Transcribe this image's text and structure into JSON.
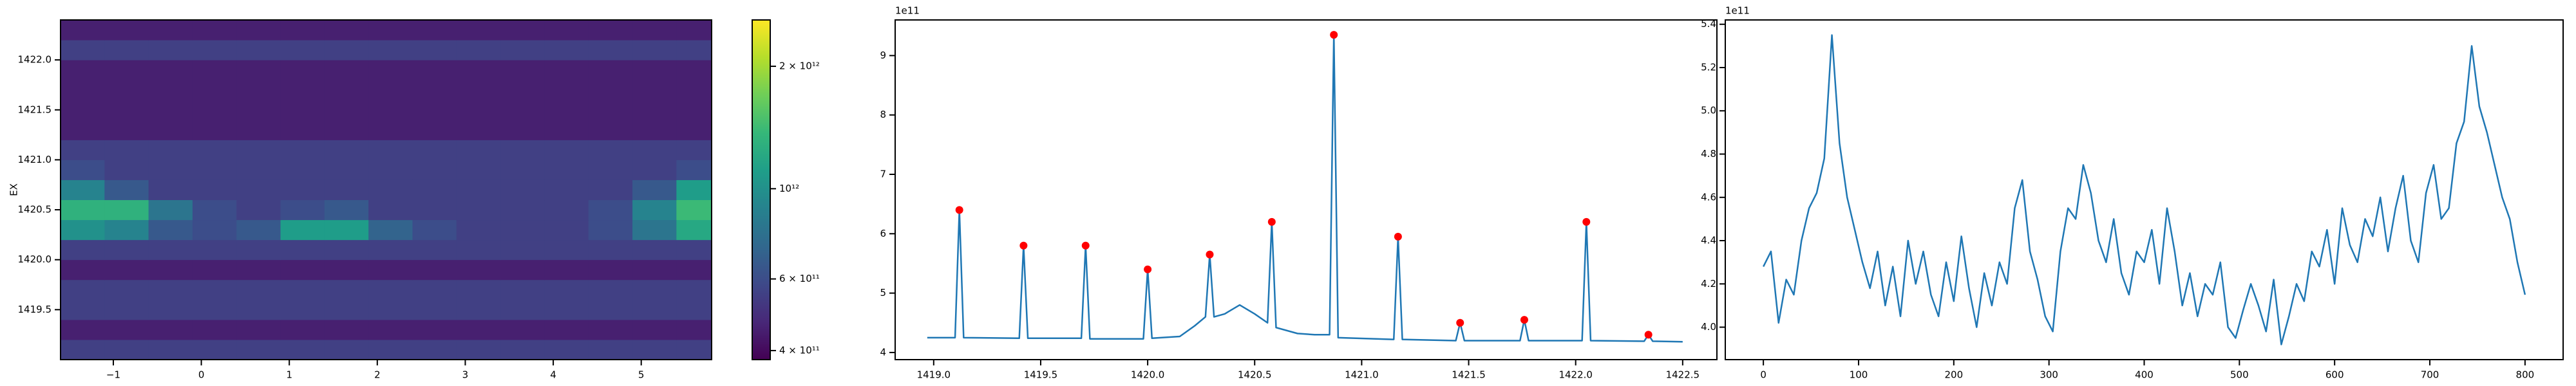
{
  "chart_data": [
    {
      "type": "heatmap",
      "ylabel": "EX",
      "x_edges": [
        -1.6,
        -1.1,
        -0.6,
        -0.1,
        0.4,
        0.9,
        1.4,
        1.9,
        2.4,
        2.9,
        3.4,
        3.9,
        4.4,
        4.9,
        5.4,
        5.8
      ],
      "y_edges": [
        1419.0,
        1419.2,
        1419.4,
        1419.6,
        1419.8,
        1420.0,
        1420.2,
        1420.4,
        1420.6,
        1420.8,
        1421.0,
        1421.2,
        1421.4,
        1421.6,
        1421.8,
        1422.0,
        1422.2,
        1422.4
      ],
      "z": [
        [
          550000000000.0,
          550000000000.0,
          550000000000.0,
          550000000000.0,
          550000000000.0,
          550000000000.0,
          550000000000.0,
          550000000000.0,
          550000000000.0,
          550000000000.0,
          550000000000.0,
          550000000000.0,
          550000000000.0,
          550000000000.0,
          550000000000.0
        ],
        [
          450000000000.0,
          450000000000.0,
          450000000000.0,
          450000000000.0,
          450000000000.0,
          450000000000.0,
          450000000000.0,
          450000000000.0,
          450000000000.0,
          450000000000.0,
          450000000000.0,
          450000000000.0,
          450000000000.0,
          450000000000.0,
          450000000000.0
        ],
        [
          550000000000.0,
          550000000000.0,
          550000000000.0,
          550000000000.0,
          550000000000.0,
          550000000000.0,
          550000000000.0,
          550000000000.0,
          550000000000.0,
          550000000000.0,
          550000000000.0,
          550000000000.0,
          550000000000.0,
          550000000000.0,
          550000000000.0
        ],
        [
          550000000000.0,
          550000000000.0,
          550000000000.0,
          550000000000.0,
          550000000000.0,
          550000000000.0,
          550000000000.0,
          550000000000.0,
          550000000000.0,
          550000000000.0,
          550000000000.0,
          550000000000.0,
          550000000000.0,
          550000000000.0,
          550000000000.0
        ],
        [
          450000000000.0,
          450000000000.0,
          450000000000.0,
          450000000000.0,
          450000000000.0,
          450000000000.0,
          450000000000.0,
          450000000000.0,
          450000000000.0,
          450000000000.0,
          450000000000.0,
          450000000000.0,
          450000000000.0,
          450000000000.0,
          450000000000.0
        ],
        [
          550000000000.0,
          550000000000.0,
          550000000000.0,
          550000000000.0,
          550000000000.0,
          550000000000.0,
          550000000000.0,
          550000000000.0,
          550000000000.0,
          550000000000.0,
          550000000000.0,
          550000000000.0,
          550000000000.0,
          550000000000.0,
          550000000000.0
        ],
        [
          1000000000000.0,
          900000000000.0,
          650000000000.0,
          600000000000.0,
          650000000000.0,
          1100000000000.0,
          1100000000000.0,
          700000000000.0,
          600000000000.0,
          550000000000.0,
          550000000000.0,
          550000000000.0,
          600000000000.0,
          800000000000.0,
          1200000000000.0
        ],
        [
          1300000000000.0,
          1300000000000.0,
          800000000000.0,
          600000000000.0,
          550000000000.0,
          600000000000.0,
          650000000000.0,
          550000000000.0,
          550000000000.0,
          550000000000.0,
          550000000000.0,
          550000000000.0,
          600000000000.0,
          900000000000.0,
          1400000000000.0
        ],
        [
          900000000000.0,
          650000000000.0,
          550000000000.0,
          550000000000.0,
          550000000000.0,
          550000000000.0,
          550000000000.0,
          550000000000.0,
          550000000000.0,
          550000000000.0,
          550000000000.0,
          550000000000.0,
          550000000000.0,
          650000000000.0,
          1100000000000.0
        ],
        [
          600000000000.0,
          550000000000.0,
          550000000000.0,
          550000000000.0,
          550000000000.0,
          550000000000.0,
          550000000000.0,
          550000000000.0,
          550000000000.0,
          550000000000.0,
          550000000000.0,
          550000000000.0,
          550000000000.0,
          550000000000.0,
          600000000000.0
        ],
        [
          550000000000.0,
          550000000000.0,
          550000000000.0,
          550000000000.0,
          550000000000.0,
          550000000000.0,
          550000000000.0,
          550000000000.0,
          550000000000.0,
          550000000000.0,
          550000000000.0,
          550000000000.0,
          550000000000.0,
          550000000000.0,
          550000000000.0
        ],
        [
          450000000000.0,
          450000000000.0,
          450000000000.0,
          450000000000.0,
          450000000000.0,
          450000000000.0,
          450000000000.0,
          450000000000.0,
          450000000000.0,
          450000000000.0,
          450000000000.0,
          450000000000.0,
          450000000000.0,
          450000000000.0,
          450000000000.0
        ],
        [
          450000000000.0,
          450000000000.0,
          450000000000.0,
          450000000000.0,
          450000000000.0,
          450000000000.0,
          450000000000.0,
          450000000000.0,
          450000000000.0,
          450000000000.0,
          450000000000.0,
          450000000000.0,
          450000000000.0,
          450000000000.0,
          450000000000.0
        ],
        [
          450000000000.0,
          450000000000.0,
          450000000000.0,
          450000000000.0,
          450000000000.0,
          450000000000.0,
          450000000000.0,
          450000000000.0,
          450000000000.0,
          450000000000.0,
          450000000000.0,
          450000000000.0,
          450000000000.0,
          450000000000.0,
          450000000000.0
        ],
        [
          450000000000.0,
          450000000000.0,
          450000000000.0,
          450000000000.0,
          450000000000.0,
          450000000000.0,
          450000000000.0,
          450000000000.0,
          450000000000.0,
          450000000000.0,
          450000000000.0,
          450000000000.0,
          450000000000.0,
          450000000000.0,
          450000000000.0
        ],
        [
          550000000000.0,
          550000000000.0,
          550000000000.0,
          550000000000.0,
          550000000000.0,
          550000000000.0,
          550000000000.0,
          550000000000.0,
          550000000000.0,
          550000000000.0,
          550000000000.0,
          550000000000.0,
          550000000000.0,
          550000000000.0,
          550000000000.0
        ],
        [
          450000000000.0,
          450000000000.0,
          450000000000.0,
          450000000000.0,
          450000000000.0,
          450000000000.0,
          450000000000.0,
          450000000000.0,
          450000000000.0,
          450000000000.0,
          450000000000.0,
          450000000000.0,
          450000000000.0,
          450000000000.0,
          450000000000.0
        ]
      ],
      "colormap": "viridis",
      "color_scale": "log",
      "clim": [
        380000000000.0,
        2600000000000.0
      ],
      "cticks": [
        {
          "value": 400000000000.0,
          "label": "4 × 10¹¹"
        },
        {
          "value": 600000000000.0,
          "label": "6 × 10¹¹"
        },
        {
          "value": 1000000000000.0,
          "label": "10¹²"
        },
        {
          "value": 2000000000000.0,
          "label": "2 × 10¹²"
        }
      ],
      "xlim": [
        -1.6,
        5.8
      ],
      "xticks": [
        {
          "value": -1,
          "label": "−1"
        },
        0,
        1,
        2,
        3,
        4,
        5
      ],
      "ylim": [
        1419.0,
        1422.4
      ],
      "yticks": [
        1419.5,
        {
          "value": 1420,
          "label": "1420.0"
        },
        1420.5,
        {
          "value": 1421,
          "label": "1421.0"
        },
        1421.5,
        {
          "value": 1422,
          "label": "1422.0"
        }
      ]
    },
    {
      "type": "line",
      "offset_text": "1e11",
      "color": "#1f77b4",
      "x": [
        1418.97,
        1419.1,
        1419.12,
        1419.14,
        1419.4,
        1419.42,
        1419.44,
        1419.69,
        1419.71,
        1419.73,
        1419.98,
        1420.0,
        1420.02,
        1420.15,
        1420.22,
        1420.27,
        1420.29,
        1420.31,
        1420.36,
        1420.43,
        1420.5,
        1420.56,
        1420.58,
        1420.6,
        1420.7,
        1420.78,
        1420.85,
        1420.87,
        1420.89,
        1421.15,
        1421.17,
        1421.19,
        1421.44,
        1421.46,
        1421.48,
        1421.74,
        1421.76,
        1421.78,
        1422.03,
        1422.05,
        1422.07,
        1422.32,
        1422.34,
        1422.36,
        1422.5
      ],
      "values": [
        4.25,
        4.25,
        6.4,
        4.25,
        4.24,
        5.8,
        4.24,
        4.24,
        5.8,
        4.23,
        4.23,
        5.4,
        4.24,
        4.27,
        4.45,
        4.6,
        5.65,
        4.6,
        4.65,
        4.8,
        4.65,
        4.5,
        6.2,
        4.42,
        4.32,
        4.3,
        4.3,
        9.35,
        4.25,
        4.22,
        5.95,
        4.22,
        4.2,
        4.5,
        4.2,
        4.2,
        4.55,
        4.2,
        4.2,
        6.2,
        4.2,
        4.19,
        4.3,
        4.19,
        4.18
      ],
      "peaks": {
        "color": "red",
        "x": [
          1419.12,
          1419.42,
          1419.71,
          1420.0,
          1420.29,
          1420.58,
          1420.87,
          1421.17,
          1421.46,
          1421.76,
          1422.05,
          1422.34
        ],
        "values": [
          6.4,
          5.8,
          5.8,
          5.4,
          5.65,
          6.2,
          9.35,
          5.95,
          4.5,
          4.55,
          6.2,
          4.3
        ]
      },
      "xlim": [
        1418.82,
        1422.66
      ],
      "xticks": [
        {
          "value": 1419,
          "label": "1419.0"
        },
        1419.5,
        {
          "value": 1420,
          "label": "1420.0"
        },
        1420.5,
        {
          "value": 1421,
          "label": "1421.0"
        },
        1421.5,
        {
          "value": 1422,
          "label": "1422.0"
        },
        1422.5
      ],
      "ylim": [
        3.88,
        9.6
      ],
      "yticks": [
        4,
        5,
        6,
        7,
        8,
        9
      ]
    },
    {
      "type": "line",
      "offset_text": "1e11",
      "color": "#1f77b4",
      "x": [
        0,
        8,
        16,
        24,
        32,
        40,
        48,
        56,
        64,
        72,
        80,
        88,
        96,
        104,
        112,
        120,
        128,
        136,
        144,
        152,
        160,
        168,
        176,
        184,
        192,
        200,
        208,
        216,
        224,
        232,
        240,
        248,
        256,
        264,
        272,
        280,
        288,
        296,
        304,
        312,
        320,
        328,
        336,
        344,
        352,
        360,
        368,
        376,
        384,
        392,
        400,
        408,
        416,
        424,
        432,
        440,
        448,
        456,
        464,
        472,
        480,
        488,
        496,
        504,
        512,
        520,
        528,
        536,
        544,
        552,
        560,
        568,
        576,
        584,
        592,
        600,
        608,
        616,
        624,
        632,
        640,
        648,
        656,
        664,
        672,
        680,
        688,
        696,
        704,
        712,
        720,
        728,
        736,
        744,
        752,
        760,
        768,
        776,
        784,
        792,
        800
      ],
      "values": [
        4.28,
        4.35,
        4.02,
        4.22,
        4.15,
        4.4,
        4.55,
        4.62,
        4.78,
        5.35,
        4.85,
        4.6,
        4.45,
        4.3,
        4.18,
        4.35,
        4.1,
        4.28,
        4.05,
        4.4,
        4.2,
        4.35,
        4.15,
        4.05,
        4.3,
        4.12,
        4.42,
        4.18,
        4.0,
        4.25,
        4.1,
        4.3,
        4.2,
        4.55,
        4.68,
        4.35,
        4.22,
        4.05,
        3.98,
        4.35,
        4.55,
        4.5,
        4.75,
        4.62,
        4.4,
        4.3,
        4.5,
        4.25,
        4.15,
        4.35,
        4.3,
        4.45,
        4.2,
        4.55,
        4.35,
        4.1,
        4.25,
        4.05,
        4.2,
        4.15,
        4.3,
        4.0,
        3.95,
        4.08,
        4.2,
        4.1,
        3.98,
        4.22,
        3.92,
        4.05,
        4.2,
        4.12,
        4.35,
        4.28,
        4.45,
        4.2,
        4.55,
        4.38,
        4.3,
        4.5,
        4.42,
        4.6,
        4.35,
        4.55,
        4.7,
        4.4,
        4.3,
        4.62,
        4.75,
        4.5,
        4.55,
        4.85,
        4.95,
        5.3,
        5.02,
        4.9,
        4.75,
        4.6,
        4.5,
        4.3,
        4.15
      ],
      "xlim": [
        -40,
        840
      ],
      "xticks": [
        0,
        100,
        200,
        300,
        400,
        500,
        600,
        700,
        800
      ],
      "ylim": [
        3.85,
        5.42
      ],
      "yticks": [
        {
          "value": 4,
          "label": "4.0"
        },
        4.2,
        4.4,
        4.6,
        4.8,
        {
          "value": 5,
          "label": "5.0"
        },
        5.2,
        5.4
      ]
    }
  ]
}
